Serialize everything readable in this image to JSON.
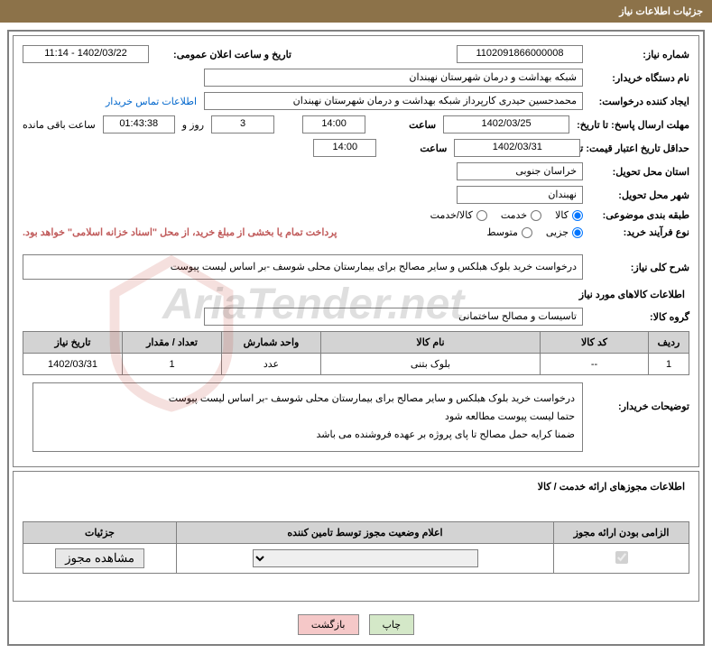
{
  "header_title": "جزئیات اطلاعات نیاز",
  "labels": {
    "need_number": "شماره نیاز:",
    "announce_date": "تاریخ و ساعت اعلان عمومی:",
    "buyer_org": "نام دستگاه خریدار:",
    "requester": "ایجاد کننده درخواست:",
    "contact_link": "اطلاعات تماس خریدار",
    "response_deadline": "مهلت ارسال پاسخ: تا تاریخ:",
    "time_lbl": "ساعت",
    "days_and": "روز و",
    "time_remaining": "ساعت باقی مانده",
    "price_validity": "حداقل تاریخ اعتبار قیمت: تا تاریخ:",
    "delivery_province": "استان محل تحویل:",
    "delivery_city": "شهر محل تحویل:",
    "category": "طبقه بندی موضوعی:",
    "purchase_type": "نوع فرآیند خرید:",
    "treasury_note": "پرداخت تمام یا بخشی از مبلغ خرید، از محل \"اسناد خزانه اسلامی\" خواهد بود.",
    "need_desc": "شرح کلی نیاز:",
    "goods_info_title": "اطلاعات کالاهای مورد نیاز",
    "goods_group": "گروه کالا:",
    "buyer_notes": "توضیحات خریدار:",
    "licenses_title": "اطلاعات مجوزهای ارائه خدمت / کالا"
  },
  "values": {
    "need_number": "1102091866000008",
    "announce_date": "1402/03/22 - 11:14",
    "buyer_org": "شبکه بهداشت و درمان شهرستان نهبندان",
    "requester": "محمدحسین حیدری کارپرداز شبکه بهداشت و درمان شهرستان نهبندان",
    "response_date": "1402/03/25",
    "response_time": "14:00",
    "days_remain": "3",
    "countdown": "01:43:38",
    "validity_date": "1402/03/31",
    "validity_time": "14:00",
    "province": "خراسان جنوبی",
    "city": "نهبندان",
    "goods_group": "تاسیسات و مصالح ساختمانی",
    "need_desc": "درخواست خرید بلوک هبلکس و سایر مصالح برای بیمارستان محلی شوسف -بر اساس لیست پیوست",
    "buyer_notes": "درخواست خرید بلوک هبلکس و سایر مصالح برای بیمارستان محلی شوسف -بر اساس لیست پیوست\nحتما لیست پیوست مطالعه شود\nضمنا کرایه حمل مصالح تا پای پروژه بر عهده فروشنده می باشد"
  },
  "radios": {
    "category": {
      "kala": "کالا",
      "khadamat": "خدمت",
      "both": "کالا/خدمت"
    },
    "purchase": {
      "jozee": "جزیی",
      "motevaset": "متوسط"
    }
  },
  "table": {
    "headers": {
      "row": "ردیف",
      "code": "کد کالا",
      "name": "نام کالا",
      "unit": "واحد شمارش",
      "qty": "تعداد / مقدار",
      "date": "تاریخ نیاز"
    },
    "rows": [
      {
        "row": "1",
        "code": "--",
        "name": "بلوک بتنی",
        "unit": "عدد",
        "qty": "1",
        "date": "1402/03/31"
      }
    ]
  },
  "license_table": {
    "headers": {
      "mandatory": "الزامی بودن ارائه مجوز",
      "status": "اعلام وضعیت مجوز توسط تامین کننده",
      "details": "جزئیات"
    },
    "view_btn": "مشاهده مجوز"
  },
  "buttons": {
    "print": "چاپ",
    "back": "بازگشت"
  },
  "colors": {
    "header_bg": "#8c7249",
    "border": "#808080",
    "th_bg": "#d3d3d3",
    "note": "#c05a5a",
    "link": "#0066cc"
  }
}
